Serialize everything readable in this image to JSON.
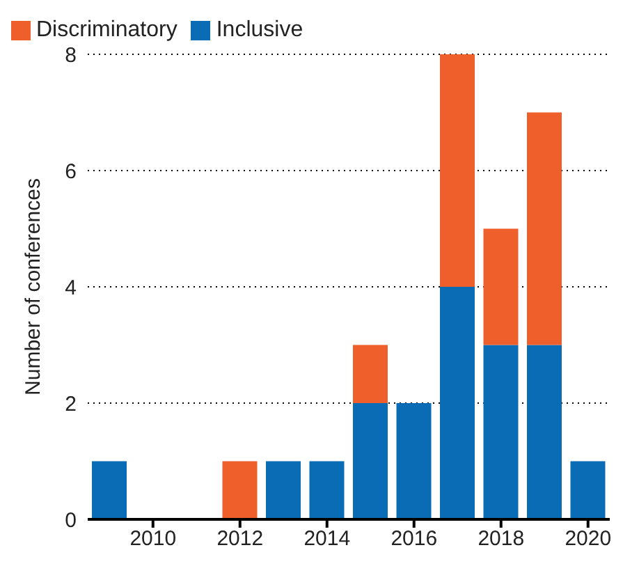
{
  "chart_data": {
    "type": "bar",
    "stacked": true,
    "ylabel": "Number of conferences",
    "x": [
      2009,
      2010,
      2011,
      2012,
      2013,
      2014,
      2015,
      2016,
      2017,
      2018,
      2019,
      2020
    ],
    "series": [
      {
        "name": "Inclusive",
        "color": "#0a6cb4",
        "values": [
          1,
          0,
          0,
          0,
          1,
          1,
          2,
          2,
          4,
          3,
          3,
          1
        ]
      },
      {
        "name": "Discriminatory",
        "color": "#ef5f2b",
        "values": [
          0,
          0,
          0,
          1,
          0,
          0,
          1,
          0,
          4,
          2,
          4,
          0
        ]
      }
    ],
    "xlim": [
      2008.5,
      2020.5
    ],
    "xticks": [
      2010,
      2012,
      2014,
      2016,
      2018,
      2020
    ],
    "ylim": [
      0,
      8
    ],
    "yticks": [
      0,
      2,
      4,
      6,
      8
    ],
    "grid": "y",
    "legend": "top left"
  }
}
